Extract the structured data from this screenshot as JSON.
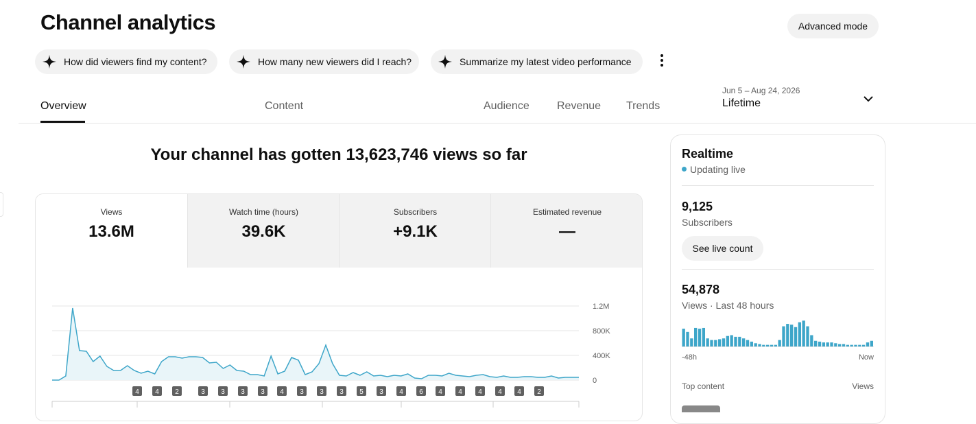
{
  "header": {
    "title": "Channel analytics",
    "advanced_button": "Advanced mode"
  },
  "suggestions": [
    "How did viewers find my content?",
    "How many new viewers did I reach?",
    "Summarize my latest video performance"
  ],
  "tabs": [
    "Overview",
    "Content",
    "Audience",
    "Revenue",
    "Trends"
  ],
  "date_range": {
    "dates": "Jun 5 – Aug 24, 2026",
    "period": "Lifetime"
  },
  "headline": "Your channel has gotten 13,623,746 views so far",
  "metrics": [
    {
      "label": "Views",
      "value": "13.6M"
    },
    {
      "label": "Watch time (hours)",
      "value": "39.6K"
    },
    {
      "label": "Subscribers",
      "value": "+9.1K"
    },
    {
      "label": "Estimated revenue",
      "value": "—"
    }
  ],
  "views_chart": {
    "type": "line",
    "color": "#3ea6c9",
    "values": [
      0,
      0,
      67000,
      1167000,
      478000,
      467000,
      300000,
      389000,
      222000,
      156000,
      156000,
      233000,
      156000,
      111000,
      144000,
      100000,
      300000,
      378000,
      378000,
      356000,
      378000,
      378000,
      367000,
      278000,
      289000,
      189000,
      244000,
      156000,
      144000,
      89000,
      89000,
      67000,
      389000,
      100000,
      144000,
      367000,
      322000,
      89000,
      133000,
      267000,
      567000,
      267000,
      78000,
      67000,
      122000,
      78000,
      133000,
      67000,
      78000,
      56000,
      78000,
      67000,
      100000,
      33000,
      22000,
      78000,
      78000,
      67000,
      111000,
      78000,
      67000,
      56000,
      78000,
      89000,
      56000,
      44000,
      67000,
      44000,
      44000,
      56000,
      56000,
      44000,
      44000,
      67000,
      33000,
      44000,
      44000,
      44000
    ],
    "ylim": [
      0,
      1200000
    ],
    "yticks": [
      0,
      {
        "value": 400000,
        "label": "400K"
      },
      {
        "value": 800000,
        "label": "800K"
      },
      {
        "value": 1200000,
        "label": "1.2M"
      }
    ],
    "grid": true,
    "annotations": [
      4,
      4,
      2,
      3,
      3,
      3,
      3,
      4,
      3,
      3,
      3,
      5,
      3,
      4,
      6,
      4,
      4,
      4,
      4,
      4,
      2
    ]
  },
  "realtime": {
    "title": "Realtime",
    "status": "Updating live",
    "subscribers": {
      "value": "9,125",
      "label": "Subscribers",
      "button": "See live count"
    },
    "views": {
      "value": "54,878",
      "label": "Views · Last 48 hours"
    },
    "bars": {
      "type": "bar",
      "color": "#3ea6c9",
      "ylim": [
        0,
        1700
      ],
      "values": [
        1100,
        900,
        500,
        1150,
        1100,
        1150,
        500,
        400,
        400,
        450,
        500,
        650,
        700,
        600,
        600,
        500,
        400,
        300,
        200,
        150,
        100,
        100,
        100,
        100,
        400,
        1250,
        1400,
        1350,
        1200,
        1500,
        1600,
        1250,
        700,
        350,
        300,
        250,
        250,
        250,
        200,
        150,
        150,
        100,
        100,
        100,
        100,
        100,
        250,
        350
      ],
      "start_label": "-48h",
      "end_label": "Now"
    },
    "top_content": {
      "label": "Top content",
      "column": "Views"
    }
  }
}
